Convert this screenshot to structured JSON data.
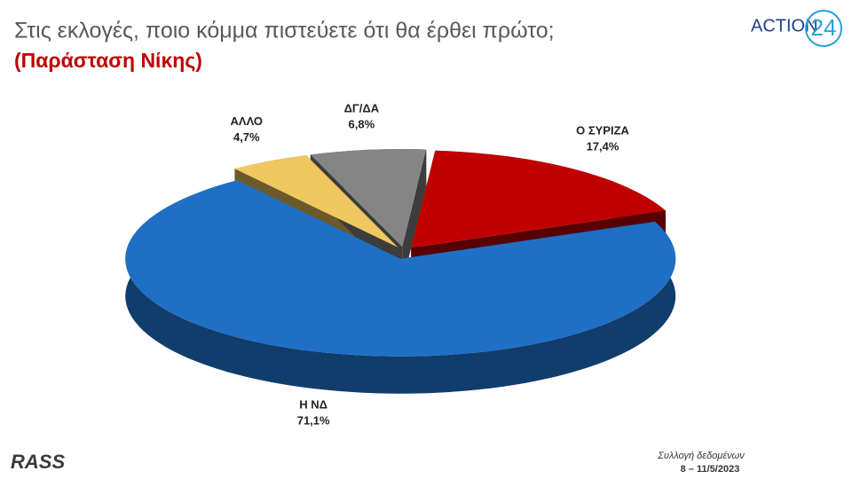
{
  "chart_data": {
    "type": "pie",
    "title": "Στις εκλογές, ποιο κόμμα πιστεύετε ότι θα έρθει πρώτο;",
    "subtitle": "(Παράσταση Νίκης)",
    "categories": [
      "Ο ΣΥΡΙΖΑ",
      "Η ΝΔ",
      "ΑΛΛΟ",
      "ΔΓ/ΔΑ"
    ],
    "values": [
      17.4,
      71.1,
      4.7,
      6.8
    ],
    "value_labels": [
      "17,4%",
      "71,1%",
      "4,7%",
      "6,8%"
    ],
    "colors": [
      "#c00000",
      "#1f6fc4",
      "#f0c860",
      "#858585"
    ]
  },
  "branding": {
    "logo": "ACTION",
    "logo_number": "24",
    "source": "RASS"
  },
  "footer": {
    "line1": "Συλλογή δεδομένων",
    "line2": "8 – 11/5/2023"
  }
}
